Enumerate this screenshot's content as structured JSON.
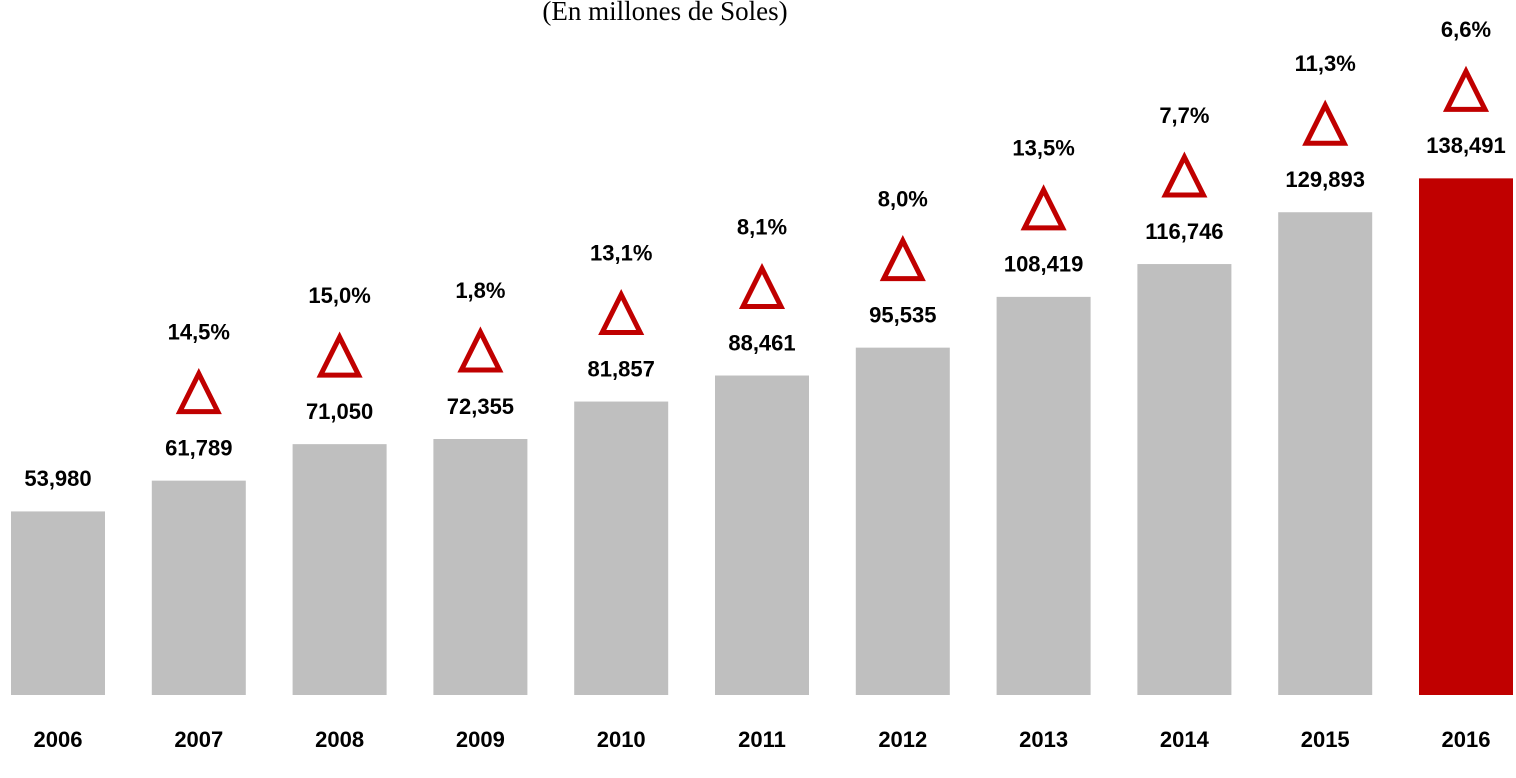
{
  "chart_data": {
    "type": "bar",
    "subtitle": "(En millones de Soles)",
    "categories": [
      "2006",
      "2007",
      "2008",
      "2009",
      "2010",
      "2011",
      "2012",
      "2013",
      "2014",
      "2015",
      "2016"
    ],
    "values": [
      53980,
      61789,
      71050,
      72355,
      81857,
      88461,
      95535,
      108419,
      116746,
      129893,
      138491
    ],
    "value_labels": [
      "53,980",
      "61,789",
      "71,050",
      "72,355",
      "81,857",
      "88,461",
      "95,535",
      "108,419",
      "116,746",
      "129,893",
      "138,491"
    ],
    "colors": [
      "#bfbfbf",
      "#bfbfbf",
      "#bfbfbf",
      "#bfbfbf",
      "#bfbfbf",
      "#bfbfbf",
      "#bfbfbf",
      "#bfbfbf",
      "#bfbfbf",
      "#bfbfbf",
      "#c00000"
    ],
    "growth": {
      "color": "#c00000",
      "values": [
        null,
        14.5,
        15.0,
        1.8,
        13.1,
        8.1,
        8.0,
        13.5,
        7.7,
        11.3,
        6.6
      ],
      "value_labels": [
        null,
        "14,5%",
        "15,0%",
        "1,8%",
        "13,1%",
        "8,1%",
        "8,0%",
        "13,5%",
        "7,7%",
        "11,3%",
        "6,6%"
      ]
    },
    "ylim": [
      7400,
      150000
    ]
  }
}
